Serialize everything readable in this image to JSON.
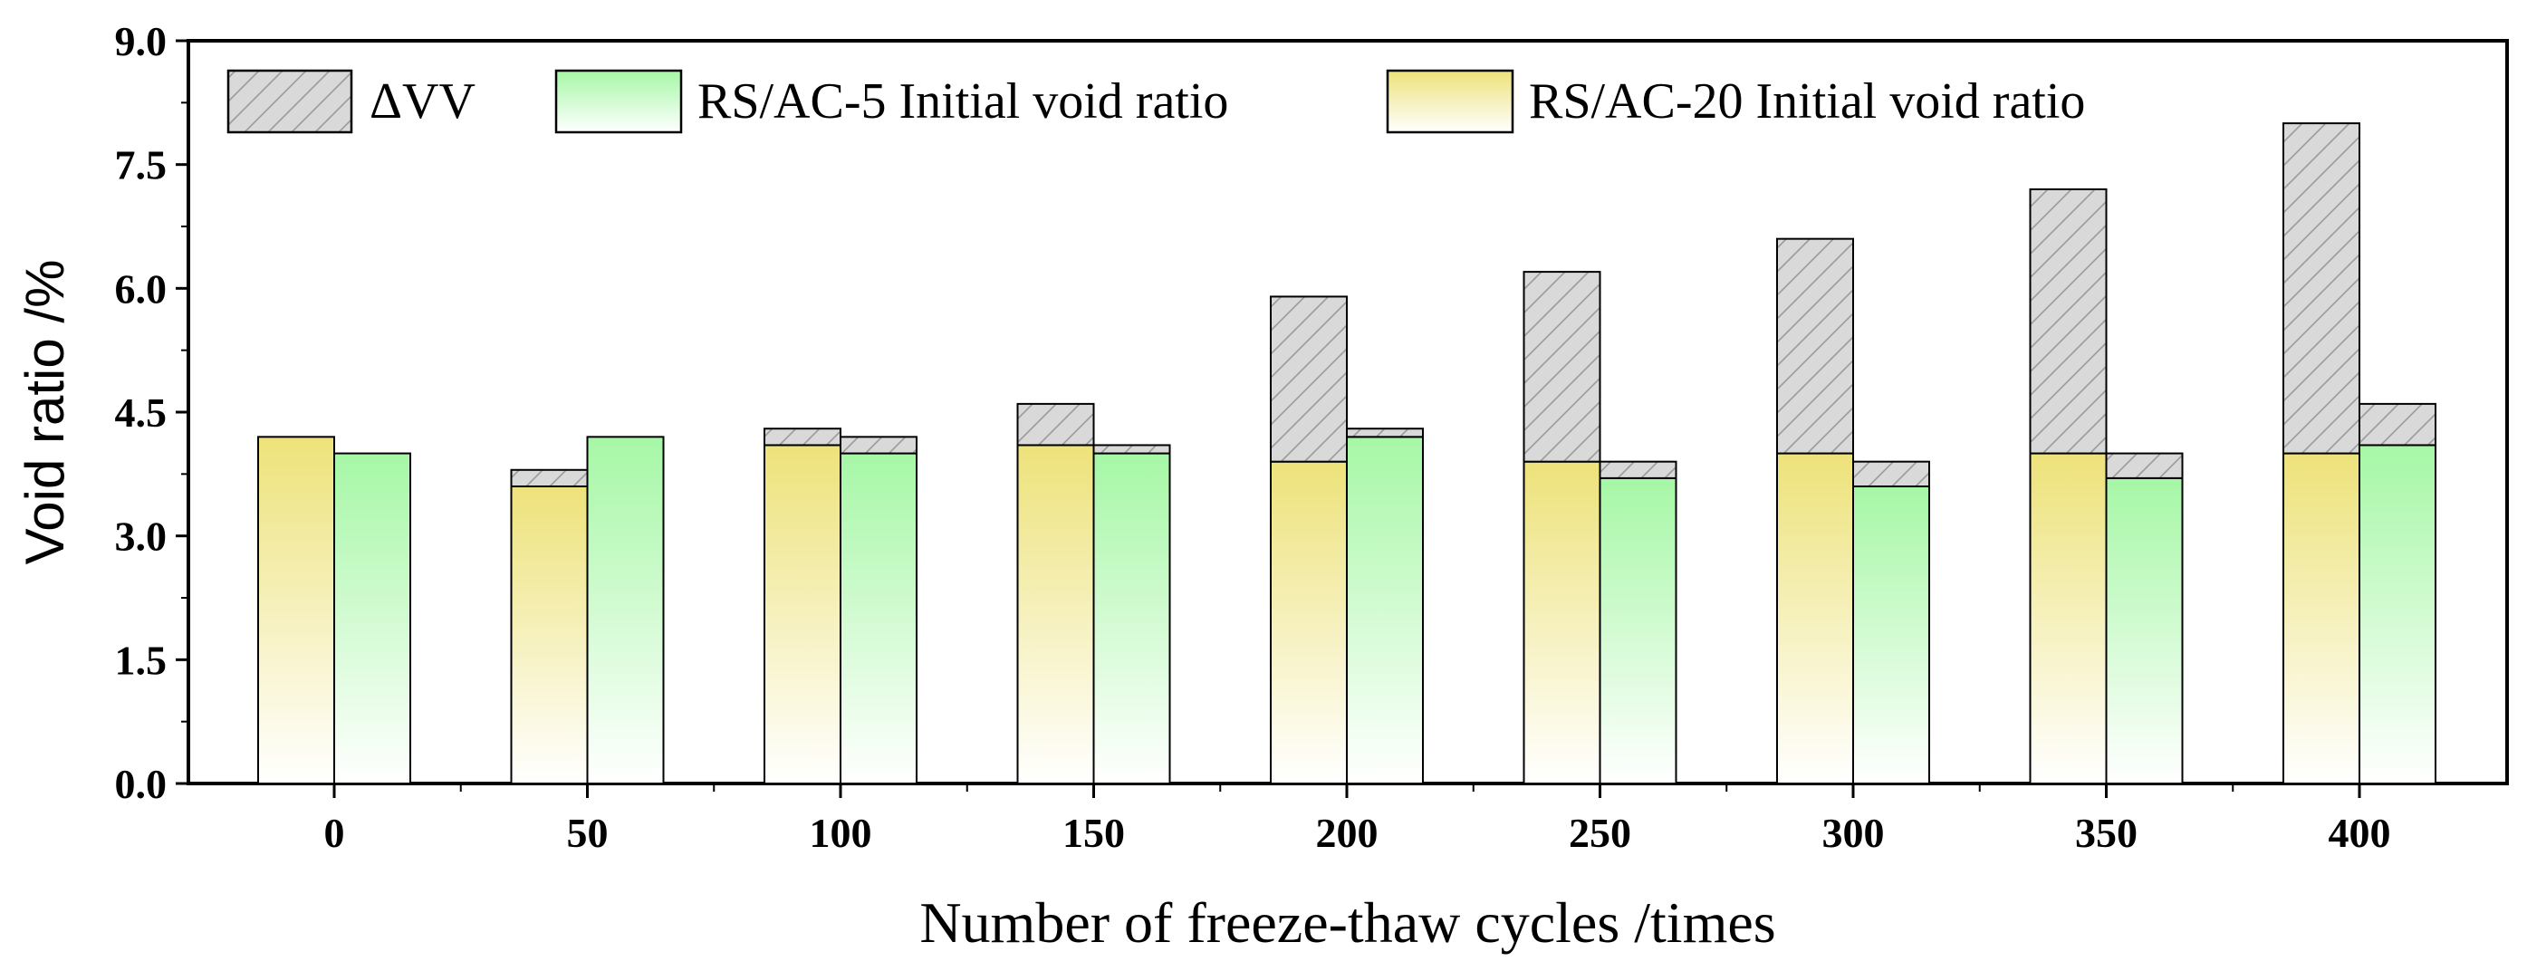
{
  "chart_data": {
    "type": "bar",
    "title": "",
    "xlabel": "Number of freeze-thaw cycles /times",
    "ylabel": "Void ratio /%",
    "ylim": [
      0,
      9
    ],
    "yticks": [
      "0.0",
      "1.5",
      "3.0",
      "4.5",
      "6.0",
      "7.5",
      "9.0"
    ],
    "categories": [
      "0",
      "50",
      "100",
      "150",
      "200",
      "250",
      "300",
      "350",
      "400"
    ],
    "series": [
      {
        "name": "RS/AC-20 Initial void ratio",
        "values": [
          4.2,
          3.6,
          4.1,
          4.1,
          3.9,
          3.9,
          4.0,
          4.0,
          4.0
        ]
      },
      {
        "name": "RS/AC-5 Initial void ratio",
        "values": [
          4.0,
          4.2,
          4.0,
          4.0,
          4.2,
          3.7,
          3.6,
          3.7,
          4.1
        ]
      },
      {
        "name": "ΔVV (stacked on RS/AC-20)",
        "values": [
          0.0,
          0.2,
          0.2,
          0.5,
          2.0,
          2.3,
          2.6,
          3.2,
          4.0
        ]
      },
      {
        "name": "ΔVV (stacked on RS/AC-5)",
        "values": [
          0.0,
          0.0,
          0.2,
          0.1,
          0.1,
          0.2,
          0.3,
          0.3,
          0.5
        ]
      }
    ],
    "legend": {
      "position": "top",
      "entries": [
        "ΔVV",
        "RS/AC-5 Initial void ratio",
        "RS/AC-20 Initial void ratio"
      ]
    },
    "grid": false
  },
  "colors": {
    "yellow": "#ede27a",
    "green": "#a6f7a6",
    "delta": "#d9d9d9",
    "stroke": "#000000"
  }
}
